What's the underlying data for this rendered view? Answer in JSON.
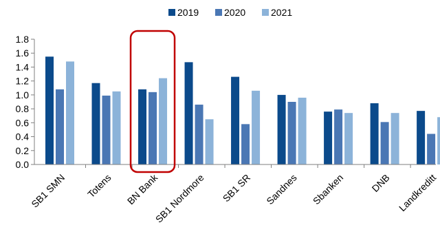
{
  "chart_data": {
    "type": "bar",
    "title": "",
    "xlabel": "",
    "ylabel": "",
    "categories": [
      "SB1 SMN",
      "Totens",
      "BN Bank",
      "SB1 Nordmore",
      "SB1 SR",
      "Sandnes",
      "Sbanken",
      "DNB",
      "Landkreditt"
    ],
    "series": [
      {
        "name": "2019",
        "color": "#0b4a8b",
        "values": [
          1.55,
          1.17,
          1.08,
          1.47,
          1.26,
          1.0,
          0.76,
          0.88,
          0.77
        ]
      },
      {
        "name": "2020",
        "color": "#4a77b4",
        "values": [
          1.08,
          0.99,
          1.04,
          0.86,
          0.58,
          0.9,
          0.79,
          0.61,
          0.44
        ]
      },
      {
        "name": "2021",
        "color": "#8cb3d9",
        "values": [
          1.48,
          1.05,
          1.24,
          0.65,
          1.06,
          0.96,
          0.74,
          0.74,
          0.68
        ]
      }
    ],
    "ylim": [
      0,
      1.8
    ],
    "yticks": [
      "0.0",
      "0.2",
      "0.4",
      "0.6",
      "0.8",
      "1.0",
      "1.2",
      "1.4",
      "1.6",
      "1.8"
    ],
    "grid": false,
    "legend_position": "top-center",
    "highlight": {
      "category": "BN Bank",
      "color": "#c00000"
    }
  }
}
